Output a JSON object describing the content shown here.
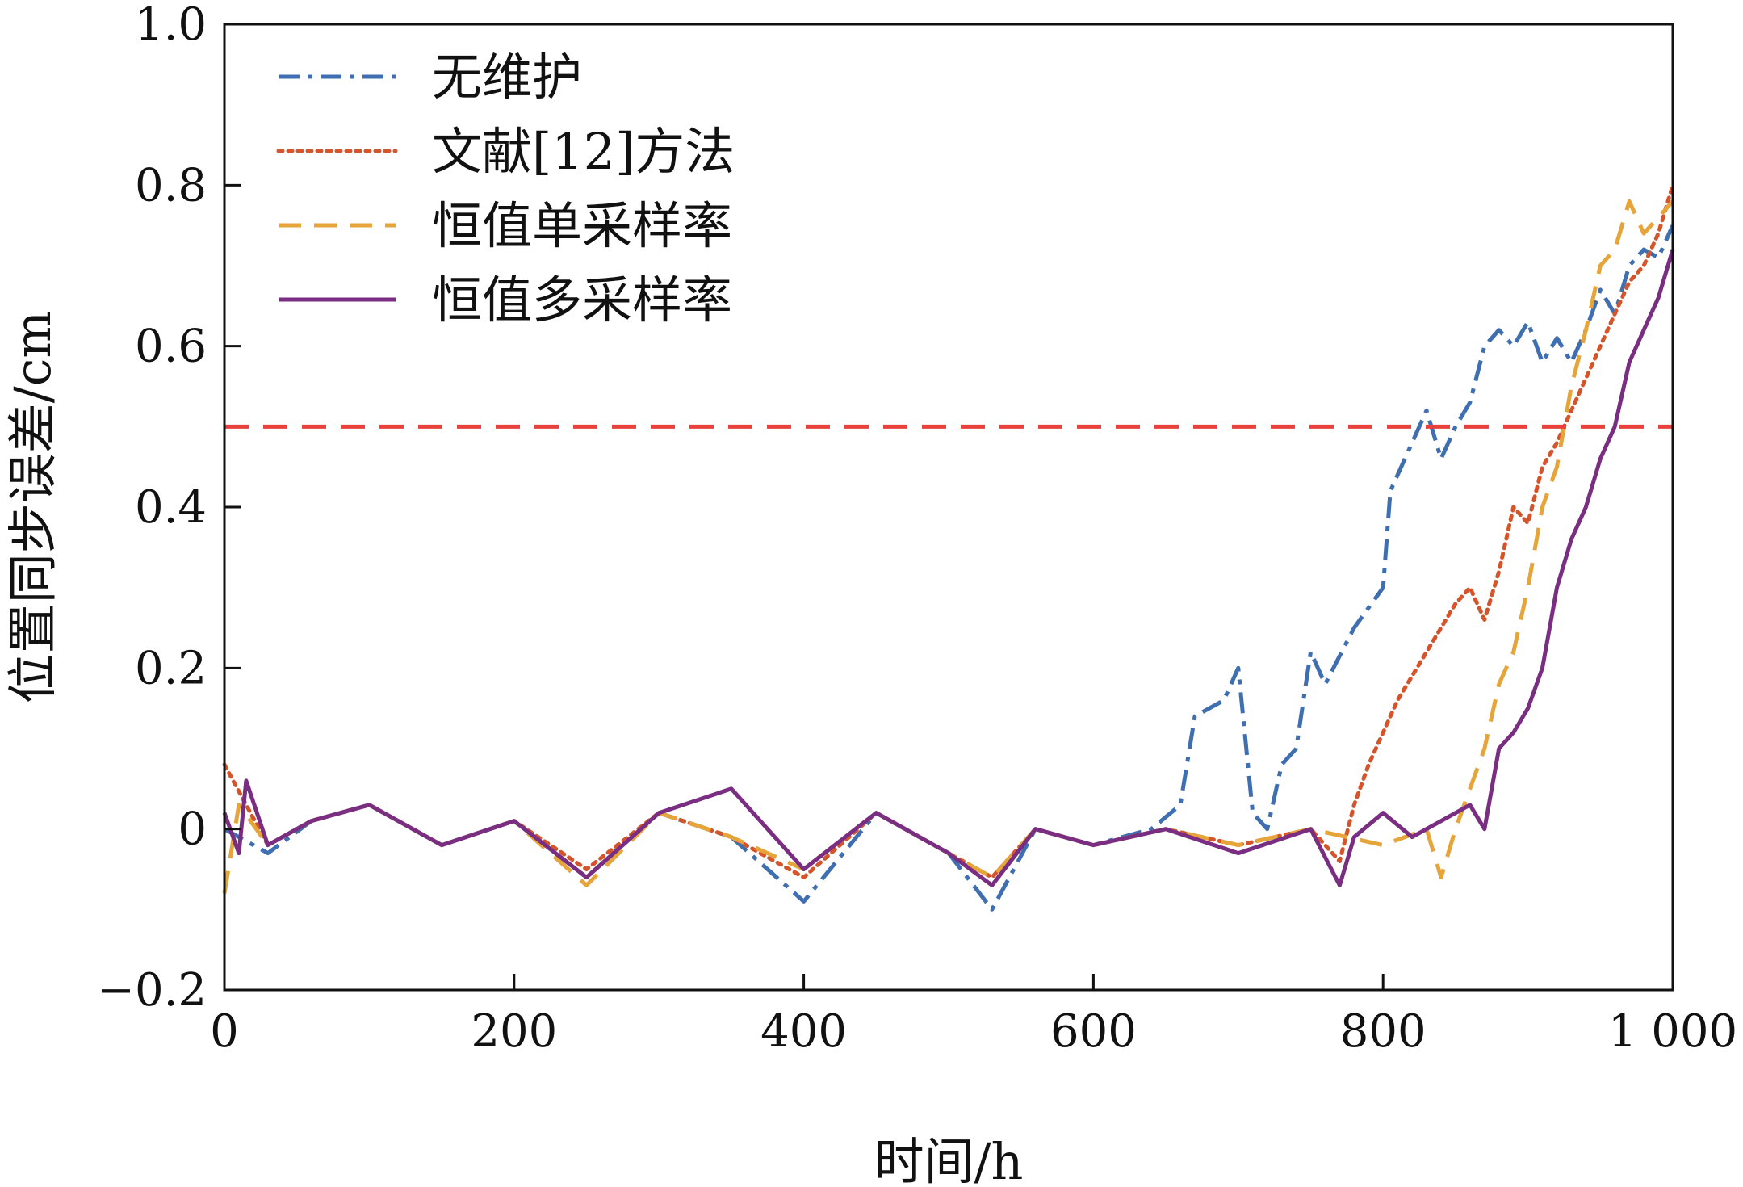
{
  "chart_data": {
    "type": "line",
    "title": "",
    "xlabel": "时间/h",
    "ylabel": "位置同步误差/cm",
    "xlim": [
      0,
      1000
    ],
    "ylim": [
      -0.2,
      1.0
    ],
    "x_ticks": [
      0,
      200,
      400,
      600,
      800,
      1000
    ],
    "x_tick_labels": [
      "0",
      "200",
      "400",
      "600",
      "800",
      "1 000"
    ],
    "y_ticks": [
      -0.2,
      0,
      0.2,
      0.4,
      0.6,
      0.8,
      1.0
    ],
    "y_tick_labels": [
      "−0.2",
      "0",
      "0.2",
      "0.4",
      "0.6",
      "0.8",
      "1.0"
    ],
    "grid": false,
    "legend_position": "top-left",
    "threshold": {
      "y": 0.5,
      "color": "#e8403a",
      "style": "dashed"
    },
    "series": [
      {
        "name": "无维护",
        "color": "#3f6fb0",
        "style": "dashdot",
        "points": [
          [
            0,
            0.0
          ],
          [
            30,
            -0.03
          ],
          [
            60,
            0.01
          ],
          [
            100,
            0.03
          ],
          [
            150,
            -0.02
          ],
          [
            200,
            0.01
          ],
          [
            250,
            -0.06
          ],
          [
            300,
            0.02
          ],
          [
            350,
            -0.01
          ],
          [
            400,
            -0.09
          ],
          [
            450,
            0.02
          ],
          [
            500,
            -0.03
          ],
          [
            530,
            -0.1
          ],
          [
            560,
            0.0
          ],
          [
            600,
            -0.02
          ],
          [
            640,
            0.0
          ],
          [
            660,
            0.03
          ],
          [
            670,
            0.14
          ],
          [
            690,
            0.16
          ],
          [
            700,
            0.2
          ],
          [
            710,
            0.02
          ],
          [
            720,
            0.0
          ],
          [
            730,
            0.08
          ],
          [
            740,
            0.1
          ],
          [
            750,
            0.22
          ],
          [
            760,
            0.18
          ],
          [
            780,
            0.25
          ],
          [
            800,
            0.3
          ],
          [
            805,
            0.42
          ],
          [
            820,
            0.48
          ],
          [
            830,
            0.52
          ],
          [
            840,
            0.46
          ],
          [
            850,
            0.5
          ],
          [
            860,
            0.53
          ],
          [
            870,
            0.6
          ],
          [
            880,
            0.62
          ],
          [
            890,
            0.6
          ],
          [
            900,
            0.63
          ],
          [
            910,
            0.58
          ],
          [
            920,
            0.61
          ],
          [
            930,
            0.58
          ],
          [
            940,
            0.62
          ],
          [
            950,
            0.67
          ],
          [
            960,
            0.64
          ],
          [
            970,
            0.7
          ],
          [
            980,
            0.72
          ],
          [
            990,
            0.71
          ],
          [
            1000,
            0.75
          ]
        ]
      },
      {
        "name": "文献[12]方法",
        "color": "#d4552b",
        "style": "dotted",
        "points": [
          [
            0,
            0.08
          ],
          [
            30,
            -0.02
          ],
          [
            60,
            0.01
          ],
          [
            100,
            0.03
          ],
          [
            150,
            -0.02
          ],
          [
            200,
            0.01
          ],
          [
            250,
            -0.05
          ],
          [
            300,
            0.02
          ],
          [
            350,
            -0.01
          ],
          [
            400,
            -0.06
          ],
          [
            450,
            0.02
          ],
          [
            500,
            -0.03
          ],
          [
            530,
            -0.06
          ],
          [
            560,
            0.0
          ],
          [
            600,
            -0.02
          ],
          [
            650,
            0.0
          ],
          [
            700,
            -0.02
          ],
          [
            750,
            0.0
          ],
          [
            770,
            -0.04
          ],
          [
            780,
            0.03
          ],
          [
            790,
            0.08
          ],
          [
            800,
            0.12
          ],
          [
            810,
            0.16
          ],
          [
            820,
            0.19
          ],
          [
            830,
            0.22
          ],
          [
            840,
            0.25
          ],
          [
            850,
            0.28
          ],
          [
            860,
            0.3
          ],
          [
            870,
            0.26
          ],
          [
            880,
            0.32
          ],
          [
            890,
            0.4
          ],
          [
            900,
            0.38
          ],
          [
            910,
            0.45
          ],
          [
            920,
            0.48
          ],
          [
            930,
            0.52
          ],
          [
            940,
            0.56
          ],
          [
            950,
            0.6
          ],
          [
            960,
            0.64
          ],
          [
            970,
            0.68
          ],
          [
            980,
            0.7
          ],
          [
            990,
            0.74
          ],
          [
            1000,
            0.8
          ]
        ]
      },
      {
        "name": "恒值单采样率",
        "color": "#e6a53a",
        "style": "dashed",
        "points": [
          [
            0,
            -0.08
          ],
          [
            10,
            0.03
          ],
          [
            30,
            -0.02
          ],
          [
            60,
            0.01
          ],
          [
            100,
            0.03
          ],
          [
            150,
            -0.02
          ],
          [
            200,
            0.01
          ],
          [
            250,
            -0.07
          ],
          [
            300,
            0.02
          ],
          [
            350,
            -0.01
          ],
          [
            400,
            -0.05
          ],
          [
            450,
            0.02
          ],
          [
            500,
            -0.03
          ],
          [
            530,
            -0.06
          ],
          [
            560,
            0.0
          ],
          [
            600,
            -0.02
          ],
          [
            650,
            0.0
          ],
          [
            700,
            -0.02
          ],
          [
            750,
            0.0
          ],
          [
            800,
            -0.02
          ],
          [
            830,
            0.0
          ],
          [
            840,
            -0.06
          ],
          [
            850,
            0.0
          ],
          [
            860,
            0.05
          ],
          [
            870,
            0.1
          ],
          [
            880,
            0.18
          ],
          [
            890,
            0.22
          ],
          [
            900,
            0.3
          ],
          [
            910,
            0.4
          ],
          [
            920,
            0.45
          ],
          [
            930,
            0.55
          ],
          [
            940,
            0.62
          ],
          [
            950,
            0.7
          ],
          [
            960,
            0.72
          ],
          [
            970,
            0.78
          ],
          [
            980,
            0.74
          ],
          [
            990,
            0.76
          ],
          [
            1000,
            0.78
          ]
        ]
      },
      {
        "name": "恒值多采样率",
        "color": "#7a2e82",
        "style": "solid",
        "points": [
          [
            0,
            0.02
          ],
          [
            10,
            -0.03
          ],
          [
            15,
            0.06
          ],
          [
            30,
            -0.02
          ],
          [
            60,
            0.01
          ],
          [
            100,
            0.03
          ],
          [
            150,
            -0.02
          ],
          [
            200,
            0.01
          ],
          [
            250,
            -0.06
          ],
          [
            300,
            0.02
          ],
          [
            350,
            0.05
          ],
          [
            400,
            -0.05
          ],
          [
            450,
            0.02
          ],
          [
            500,
            -0.03
          ],
          [
            530,
            -0.07
          ],
          [
            560,
            0.0
          ],
          [
            600,
            -0.02
          ],
          [
            650,
            0.0
          ],
          [
            700,
            -0.03
          ],
          [
            750,
            0.0
          ],
          [
            770,
            -0.07
          ],
          [
            780,
            -0.01
          ],
          [
            800,
            0.02
          ],
          [
            820,
            -0.01
          ],
          [
            840,
            0.01
          ],
          [
            860,
            0.03
          ],
          [
            870,
            0.0
          ],
          [
            880,
            0.1
          ],
          [
            890,
            0.12
          ],
          [
            900,
            0.15
          ],
          [
            910,
            0.2
          ],
          [
            920,
            0.3
          ],
          [
            930,
            0.36
          ],
          [
            940,
            0.4
          ],
          [
            950,
            0.46
          ],
          [
            960,
            0.5
          ],
          [
            970,
            0.58
          ],
          [
            980,
            0.62
          ],
          [
            990,
            0.66
          ],
          [
            1000,
            0.72
          ]
        ]
      }
    ]
  }
}
